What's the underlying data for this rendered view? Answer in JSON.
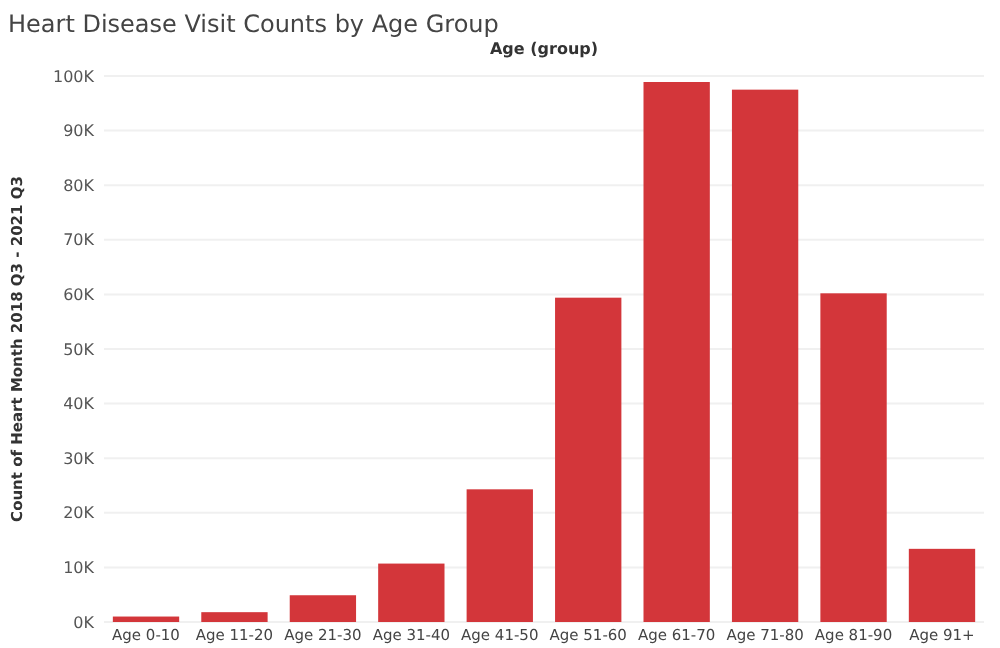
{
  "chart_data": {
    "type": "bar",
    "title": "Heart Disease Visit Counts by Age Group",
    "xlabel": "Age (group)",
    "ylabel": "Count of Heart Month 2018 Q3 - 2021 Q3",
    "categories": [
      "Age 0-10",
      "Age 11-20",
      "Age 21-30",
      "Age 31-40",
      "Age 41-50",
      "Age 51-60",
      "Age 61-70",
      "Age 71-80",
      "Age 81-90",
      "Age 91+"
    ],
    "values": [
      1000,
      1800,
      4900,
      10700,
      24300,
      59400,
      98900,
      97500,
      60200,
      13400
    ],
    "color": "#d3363a",
    "ylim": [
      0,
      100000
    ],
    "yticks": [
      {
        "value": 0,
        "label": "0K"
      },
      {
        "value": 10000,
        "label": "10K"
      },
      {
        "value": 20000,
        "label": "20K"
      },
      {
        "value": 30000,
        "label": "30K"
      },
      {
        "value": 40000,
        "label": "40K"
      },
      {
        "value": 50000,
        "label": "50K"
      },
      {
        "value": 60000,
        "label": "60K"
      },
      {
        "value": 70000,
        "label": "70K"
      },
      {
        "value": 80000,
        "label": "80K"
      },
      {
        "value": 90000,
        "label": "90K"
      },
      {
        "value": 100000,
        "label": "100K"
      }
    ],
    "grid": "y"
  }
}
